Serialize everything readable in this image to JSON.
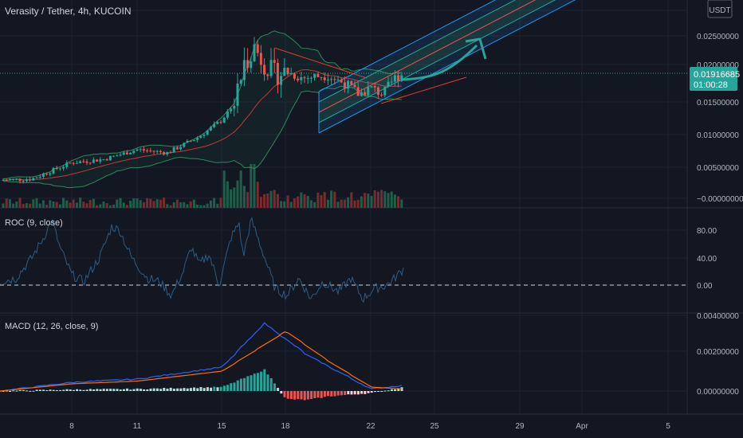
{
  "header": {
    "symbol_title": "Verasity / Tether, 4h, KUCOIN",
    "currency_badge": "USDT"
  },
  "price_tag": {
    "price": "0.01916685",
    "countdown": "01:00:28"
  },
  "price_axis": [
    "0.02500000",
    "0.02000000",
    "0.01500000",
    "0.01000000",
    "0.00500000",
    "−0.00000000"
  ],
  "roc_pane": {
    "title": "ROC (9, close)",
    "axis": [
      "80.00",
      "40.00",
      "0.00"
    ]
  },
  "macd_pane": {
    "title": "MACD (12, 26, close, 9)",
    "axis": [
      "0.00400000",
      "0.00200000",
      "0.00000000"
    ]
  },
  "time_axis": [
    "8",
    "11",
    "15",
    "18",
    "22",
    "25",
    "29",
    "Apr",
    "5"
  ],
  "colors": {
    "background": "#131722",
    "up": "#26a69a",
    "down": "#ef5350",
    "bb_line": "#2e8b57",
    "bb_basis": "#c23a3a",
    "roc": "#2b5c86",
    "macd": "#2962ff",
    "signal": "#ff6d00",
    "channel": "#2196f3",
    "price_tag": "#26a69a",
    "arrow": "#26a69a"
  },
  "chart_data": [
    {
      "type": "candlestick",
      "title": "Verasity / Tether, 4h, KUCOIN",
      "y_unit": "USDT",
      "ylim": [
        -0.0005,
        0.0275
      ],
      "x_ticks": [
        "8",
        "11",
        "15",
        "18",
        "22",
        "25",
        "29",
        "Apr",
        "5"
      ],
      "key_points": [
        {
          "x": "start",
          "close": 0.0028
        },
        {
          "x": "8",
          "close": 0.0055
        },
        {
          "x": "11",
          "close": 0.0075
        },
        {
          "x": "15",
          "close": 0.012
        },
        {
          "x": "16",
          "close": 0.02
        },
        {
          "x": "17",
          "close": 0.0235
        },
        {
          "x": "18",
          "close": 0.0195
        },
        {
          "x": "20",
          "close": 0.019
        },
        {
          "x": "21",
          "close": 0.0165
        },
        {
          "x": "22",
          "close": 0.017
        },
        {
          "x": "last",
          "close": 0.0192
        }
      ],
      "last_price": 0.01916685,
      "overlays": [
        "Bollinger Bands",
        "Regression channel",
        "Trend line",
        "Arrow"
      ]
    },
    {
      "type": "line",
      "title": "ROC (9, close)",
      "ylim": [
        -20,
        110
      ],
      "zero_line": 0,
      "y_ticks": [
        80,
        40,
        0
      ],
      "key_points": [
        {
          "x": "7",
          "y": 90
        },
        {
          "x": "10",
          "y": 80
        },
        {
          "x": "14",
          "y": 50
        },
        {
          "x": "16",
          "y": 90
        },
        {
          "x": "18",
          "y": 10
        },
        {
          "x": "20",
          "y": -10
        },
        {
          "x": "22",
          "y": 0
        },
        {
          "x": "last",
          "y": 25
        }
      ]
    },
    {
      "type": "line",
      "title": "MACD (12, 26, close, 9)",
      "ylim": [
        -0.0011,
        0.0041
      ],
      "y_ticks": [
        0.004,
        0.002,
        0.0
      ],
      "series": [
        {
          "name": "MACD",
          "key_points": [
            [
              0,
              0
            ],
            [
              11,
              0.0006
            ],
            [
              15,
              0.0012
            ],
            [
              17,
              0.0034
            ],
            [
              19,
              0.0018
            ],
            [
              22,
              0.0001
            ],
            [
              23,
              0.0003
            ]
          ]
        },
        {
          "name": "Signal",
          "key_points": [
            [
              0,
              0
            ],
            [
              11,
              0.0005
            ],
            [
              15,
              0.001
            ],
            [
              18,
              0.003
            ],
            [
              20,
              0.0015
            ],
            [
              22,
              0.0002
            ],
            [
              23,
              0.0001
            ]
          ]
        }
      ],
      "histogram": "green above zero until 18, red/white below zero 18–22, green at last bars"
    }
  ]
}
